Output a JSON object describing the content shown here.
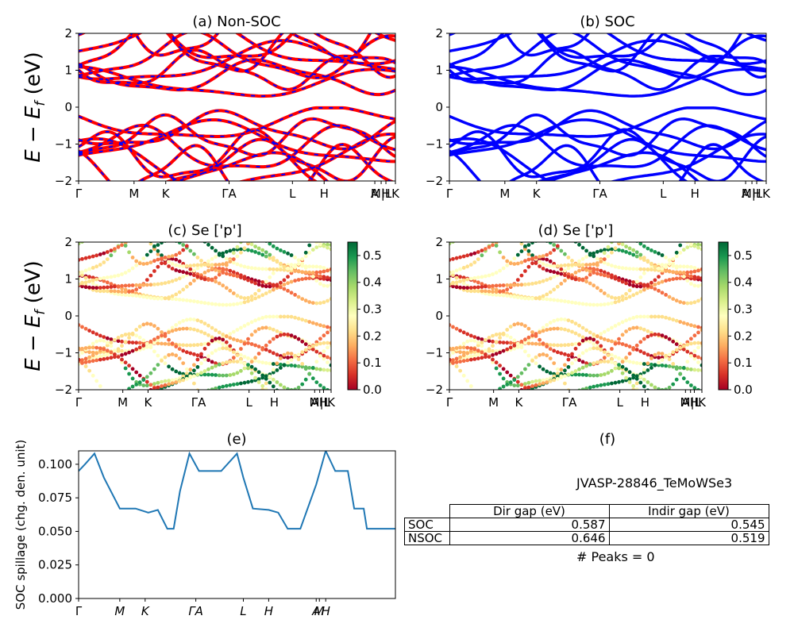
{
  "bands_y_ticks": [
    "2",
    "1",
    "0",
    "−1",
    "−2"
  ],
  "kpath_labels": [
    "Γ",
    "M",
    "K",
    "ΓA",
    "L",
    "H",
    "A",
    "M|L",
    "H",
    "K"
  ],
  "panel_a": {
    "title": "(a) Non-SOC"
  },
  "panel_b": {
    "title": "(b) SOC"
  },
  "panel_c": {
    "title": "(c)  Se ['p']"
  },
  "panel_d": {
    "title": "(d) Se ['p']"
  },
  "panel_e": {
    "title": "(e)",
    "ylabel": "SOC spillage (chg. den. unit)"
  },
  "panel_f": {
    "title": "(f)",
    "material": "JVASP-28846_TeMoWSe3",
    "peaks": "# Peaks = 0"
  },
  "colorbar_ticks": [
    "0.5",
    "0.4",
    "0.3",
    "0.2",
    "0.1",
    "0.0"
  ],
  "colors": {
    "nonsoc_up": "#ff0000",
    "nonsoc_dn": "#0000ff",
    "soc": "#0000ff",
    "spillage": "#1f77b4"
  },
  "gap_table": {
    "columns": [
      "Dir gap (eV)",
      "Indir gap (eV)"
    ],
    "rows": [
      {
        "label": "SOC",
        "dir": "0.587",
        "indir": "0.545"
      },
      {
        "label": "NSOC",
        "dir": "0.646",
        "indir": "0.519"
      }
    ]
  },
  "chart_data": [
    {
      "type": "line",
      "panel": "a",
      "title": "(a) Non-SOC",
      "ylim": [
        -2,
        2
      ],
      "yticks": [
        2,
        1,
        0,
        -1,
        -2
      ],
      "xticklabels": [
        "Γ",
        "M",
        "K",
        "ΓA",
        "L",
        "H",
        "A",
        "M|L",
        "H",
        "K"
      ],
      "series": [
        {
          "values": "bands"
        }
      ]
    },
    {
      "type": "line",
      "panel": "b",
      "title": "(b) SOC",
      "ylim": [
        -2,
        2
      ],
      "yticks": [
        2,
        1,
        0,
        -1,
        -2
      ],
      "xticklabels": [
        "Γ",
        "M",
        "K",
        "ΓA",
        "L",
        "H",
        "A",
        "M|L",
        "H",
        "K"
      ]
    },
    {
      "type": "scatter",
      "panel": "c",
      "title": "(c)  Se ['p']",
      "ylim": [
        -2,
        2
      ],
      "clim": [
        0,
        0.55
      ],
      "colorbar_ticks": [
        0.0,
        0.1,
        0.2,
        0.3,
        0.4,
        0.5
      ]
    },
    {
      "type": "scatter",
      "panel": "d",
      "title": "(d) Se ['p']",
      "ylim": [
        -2,
        2
      ],
      "clim": [
        0,
        0.54
      ],
      "colorbar_ticks": [
        0.0,
        0.1,
        0.2,
        0.3,
        0.4,
        0.5
      ]
    },
    {
      "type": "line",
      "panel": "e",
      "title": "(e)",
      "ylabel": "SOC spillage (chg. den. unit)",
      "ylim": [
        0,
        0.11
      ],
      "yticks": [
        0.0,
        0.025,
        0.05,
        0.075,
        0.1
      ],
      "xticklabels": [
        "Γ",
        "M",
        "K",
        "ΓA",
        "L",
        "H",
        "A",
        "M",
        "H"
      ],
      "x": [
        0,
        0.02,
        0.05,
        0.08,
        0.13,
        0.18,
        0.22,
        0.25,
        0.28,
        0.3,
        0.32,
        0.35,
        0.38,
        0.41,
        0.45,
        0.5,
        0.52,
        0.55,
        0.6,
        0.63,
        0.66,
        0.7,
        0.75,
        0.78,
        0.81,
        0.85,
        0.87,
        0.9,
        0.91,
        0.95,
        1.0
      ],
      "values": [
        0.095,
        0.1,
        0.108,
        0.09,
        0.067,
        0.067,
        0.064,
        0.066,
        0.052,
        0.052,
        0.08,
        0.108,
        0.095,
        0.095,
        0.095,
        0.108,
        0.09,
        0.067,
        0.066,
        0.064,
        0.052,
        0.052,
        0.085,
        0.11,
        0.095,
        0.095,
        0.067,
        0.067,
        0.052,
        0.052,
        0.052
      ]
    }
  ]
}
